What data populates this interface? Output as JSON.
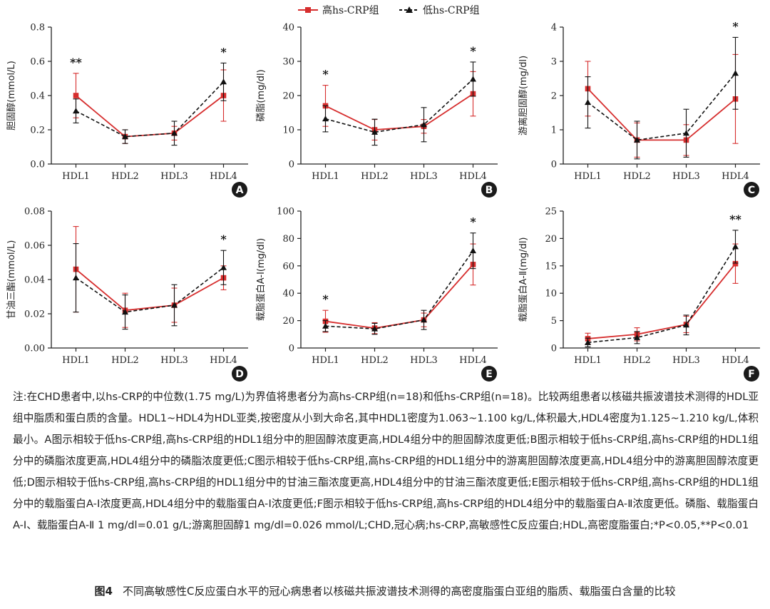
{
  "legend": {
    "series_high": "高hs-CRP组",
    "series_low": "低hs-CRP组",
    "color_high": "#d62d2d",
    "color_low": "#111111"
  },
  "chart_data": [
    {
      "type": "line",
      "panel": "A",
      "categories": [
        "HDL1",
        "HDL2",
        "HDL3",
        "HDL4"
      ],
      "ylabel": "胆固醇(mmol/L)",
      "ylim": [
        0,
        0.8
      ],
      "yticks": [
        0,
        0.2,
        0.4,
        0.6,
        0.8
      ],
      "tick_format": "%.1f",
      "series": [
        {
          "name": "高hs-CRP组",
          "values": [
            0.4,
            0.16,
            0.18,
            0.4
          ],
          "err": [
            0.13,
            0.04,
            0.04,
            0.15
          ]
        },
        {
          "name": "低hs-CRP组",
          "values": [
            0.31,
            0.16,
            0.18,
            0.48
          ],
          "err": [
            0.07,
            0.04,
            0.07,
            0.11
          ]
        }
      ],
      "sig": [
        "**",
        "",
        "",
        "*"
      ]
    },
    {
      "type": "line",
      "panel": "B",
      "categories": [
        "HDL1",
        "HDL2",
        "HDL3",
        "HDL4"
      ],
      "ylabel": "磷脂(mg/dl)",
      "ylim": [
        0,
        40
      ],
      "yticks": [
        0,
        10,
        20,
        30,
        40
      ],
      "tick_format": "%d",
      "series": [
        {
          "name": "高hs-CRP组",
          "values": [
            17,
            10,
            11,
            20.5
          ],
          "err": [
            6,
            3,
            2,
            6.5
          ]
        },
        {
          "name": "低hs-CRP组",
          "values": [
            13.2,
            9.3,
            11.5,
            24.8
          ],
          "err": [
            3.8,
            3.8,
            5,
            5
          ]
        }
      ],
      "sig": [
        "*",
        "",
        "",
        "*"
      ]
    },
    {
      "type": "line",
      "panel": "C",
      "categories": [
        "HDL1",
        "HDL2",
        "HDL3",
        "HDL4"
      ],
      "ylabel": "游离胆固醇(mg/dl)",
      "ylim": [
        0,
        4
      ],
      "yticks": [
        0,
        1,
        2,
        3,
        4
      ],
      "tick_format": "%d",
      "series": [
        {
          "name": "高hs-CRP组",
          "values": [
            2.2,
            0.7,
            0.7,
            1.9
          ],
          "err": [
            0.8,
            0.5,
            0.45,
            1.3
          ]
        },
        {
          "name": "低hs-CRP组",
          "values": [
            1.8,
            0.7,
            0.9,
            2.65
          ],
          "err": [
            0.75,
            0.55,
            0.7,
            1.05
          ]
        }
      ],
      "sig": [
        "",
        "",
        "",
        "*"
      ]
    },
    {
      "type": "line",
      "panel": "D",
      "categories": [
        "HDL1",
        "HDL2",
        "HDL3",
        "HDL4"
      ],
      "ylabel": "甘油三酯(mmol/L)",
      "ylim": [
        0,
        0.08
      ],
      "yticks": [
        0,
        0.02,
        0.04,
        0.06,
        0.08
      ],
      "tick_format": "%.2f",
      "series": [
        {
          "name": "高hs-CRP组",
          "values": [
            0.046,
            0.022,
            0.025,
            0.041
          ],
          "err": [
            0.025,
            0.01,
            0.01,
            0.007
          ]
        },
        {
          "name": "低hs-CRP组",
          "values": [
            0.041,
            0.021,
            0.025,
            0.047
          ],
          "err": [
            0.02,
            0.01,
            0.012,
            0.01
          ]
        }
      ],
      "sig": [
        "",
        "",
        "",
        "*"
      ]
    },
    {
      "type": "line",
      "panel": "E",
      "categories": [
        "HDL1",
        "HDL2",
        "HDL3",
        "HDL4"
      ],
      "ylabel": "载脂蛋白A-Ⅰ(mg/dl)",
      "ylim": [
        0,
        100
      ],
      "yticks": [
        0,
        20,
        40,
        60,
        80,
        100
      ],
      "tick_format": "%d",
      "series": [
        {
          "name": "高hs-CRP组",
          "values": [
            19.5,
            14.5,
            20.5,
            61
          ],
          "err": [
            8,
            4,
            5,
            15
          ]
        },
        {
          "name": "低hs-CRP组",
          "values": [
            16,
            14,
            20.5,
            71
          ],
          "err": [
            4,
            4,
            7,
            13
          ]
        }
      ],
      "sig": [
        "*",
        "",
        "",
        "*"
      ]
    },
    {
      "type": "line",
      "panel": "F",
      "categories": [
        "HDL1",
        "HDL2",
        "HDL3",
        "HDL4"
      ],
      "ylabel": "载脂蛋白A-Ⅱ(mg/dl)",
      "ylim": [
        0,
        25
      ],
      "yticks": [
        0,
        5,
        10,
        15,
        20,
        25
      ],
      "tick_format": "%d",
      "series": [
        {
          "name": "高hs-CRP组",
          "values": [
            1.7,
            2.5,
            4.3,
            15.4
          ],
          "err": [
            1,
            1.2,
            1.5,
            3.6
          ]
        },
        {
          "name": "低hs-CRP组",
          "values": [
            1.0,
            1.9,
            4.2,
            18.5
          ],
          "err": [
            0.8,
            1.1,
            1.8,
            3
          ]
        }
      ],
      "sig": [
        "",
        "",
        "",
        "**"
      ]
    }
  ],
  "caption": "注:在CHD患者中,以hs-CRP的中位数(1.75 mg/L)为界值将患者分为高hs-CRP组(n=18)和低hs-CRP组(n=18)。比较两组患者以核磁共振波谱技术测得的HDL亚组中脂质和蛋白质的含量。HDL1~HDL4为HDL亚类,按密度从小到大命名,其中HDL1密度为1.063~1.100 kg/L,体积最大,HDL4密度为1.125~1.210 kg/L,体积最小。A图示相较于低hs-CRP组,高hs-CRP组的HDL1组分中的胆固醇浓度更高,HDL4组分中的胆固醇浓度更低;B图示相较于低hs-CRP组,高hs-CRP组的HDL1组分中的磷脂浓度更高,HDL4组分中的磷脂浓度更低;C图示相较于低hs-CRP组,高hs-CRP组的HDL1组分中的游离胆固醇浓度更高,HDL4组分中的游离胆固醇浓度更低;D图示相较于低hs-CRP组,高hs-CRP组的HDL1组分中的甘油三酯浓度更高,HDL4组分中的甘油三酯浓度更低;E图示相较于低hs-CRP组,高hs-CRP组的HDL1组分中的载脂蛋白A-Ⅰ浓度更高,HDL4组分中的载脂蛋白A-Ⅰ浓度更低;F图示相较于低hs-CRP组,高hs-CRP组的HDL4组分中的载脂蛋白A-Ⅱ浓度更低。磷脂、载脂蛋白A-Ⅰ、载脂蛋白A-Ⅱ 1 mg/dl=0.01 g/L;游离胆固醇1 mg/dl=0.026 mmol/L;CHD,冠心病;hs-CRP,高敏感性C反应蛋白;HDL,高密度脂蛋白;*P<0.05,**P<0.01",
  "figure_label": "图4",
  "figure_title": "不同高敏感性C反应蛋白水平的冠心病患者以核磁共振波谱技术测得的高密度脂蛋白亚组的脂质、载脂蛋白含量的比较"
}
